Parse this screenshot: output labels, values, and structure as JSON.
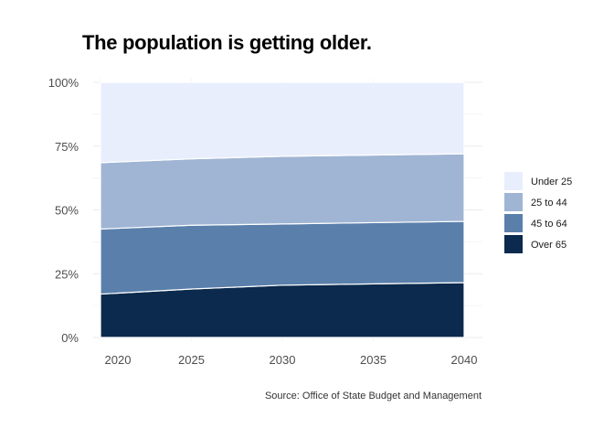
{
  "chart_data": {
    "type": "area",
    "stacked": true,
    "normalized": true,
    "title": "The population is getting older.",
    "source": "Source: Office of State Budget and Management",
    "x": [
      2020,
      2025,
      2030,
      2035,
      2040
    ],
    "x_tick_labels": [
      "2020",
      "2025",
      "2030",
      "2035",
      "2040"
    ],
    "ylim": [
      0,
      100
    ],
    "y_ticks": [
      0,
      25,
      50,
      75,
      100
    ],
    "y_tick_labels": [
      "0%",
      "25%",
      "50%",
      "75%",
      "100%"
    ],
    "grid": true,
    "legend_position": "right",
    "series": [
      {
        "name": "Over 65",
        "color": "#0b2a4d",
        "values": [
          17,
          19,
          20.5,
          21,
          21.5
        ]
      },
      {
        "name": "45 to 64",
        "color": "#5a7fab",
        "values": [
          25.5,
          25,
          24,
          24,
          24
        ]
      },
      {
        "name": "25 to 44",
        "color": "#a0b5d4",
        "values": [
          26,
          26,
          26.5,
          26.5,
          26.5
        ]
      },
      {
        "name": "Under 25",
        "color": "#e8eefc",
        "values": [
          31.5,
          30,
          29,
          28.5,
          28
        ]
      }
    ],
    "legend_order": [
      "Under 25",
      "25 to 44",
      "45 to 64",
      "Over 65"
    ]
  }
}
